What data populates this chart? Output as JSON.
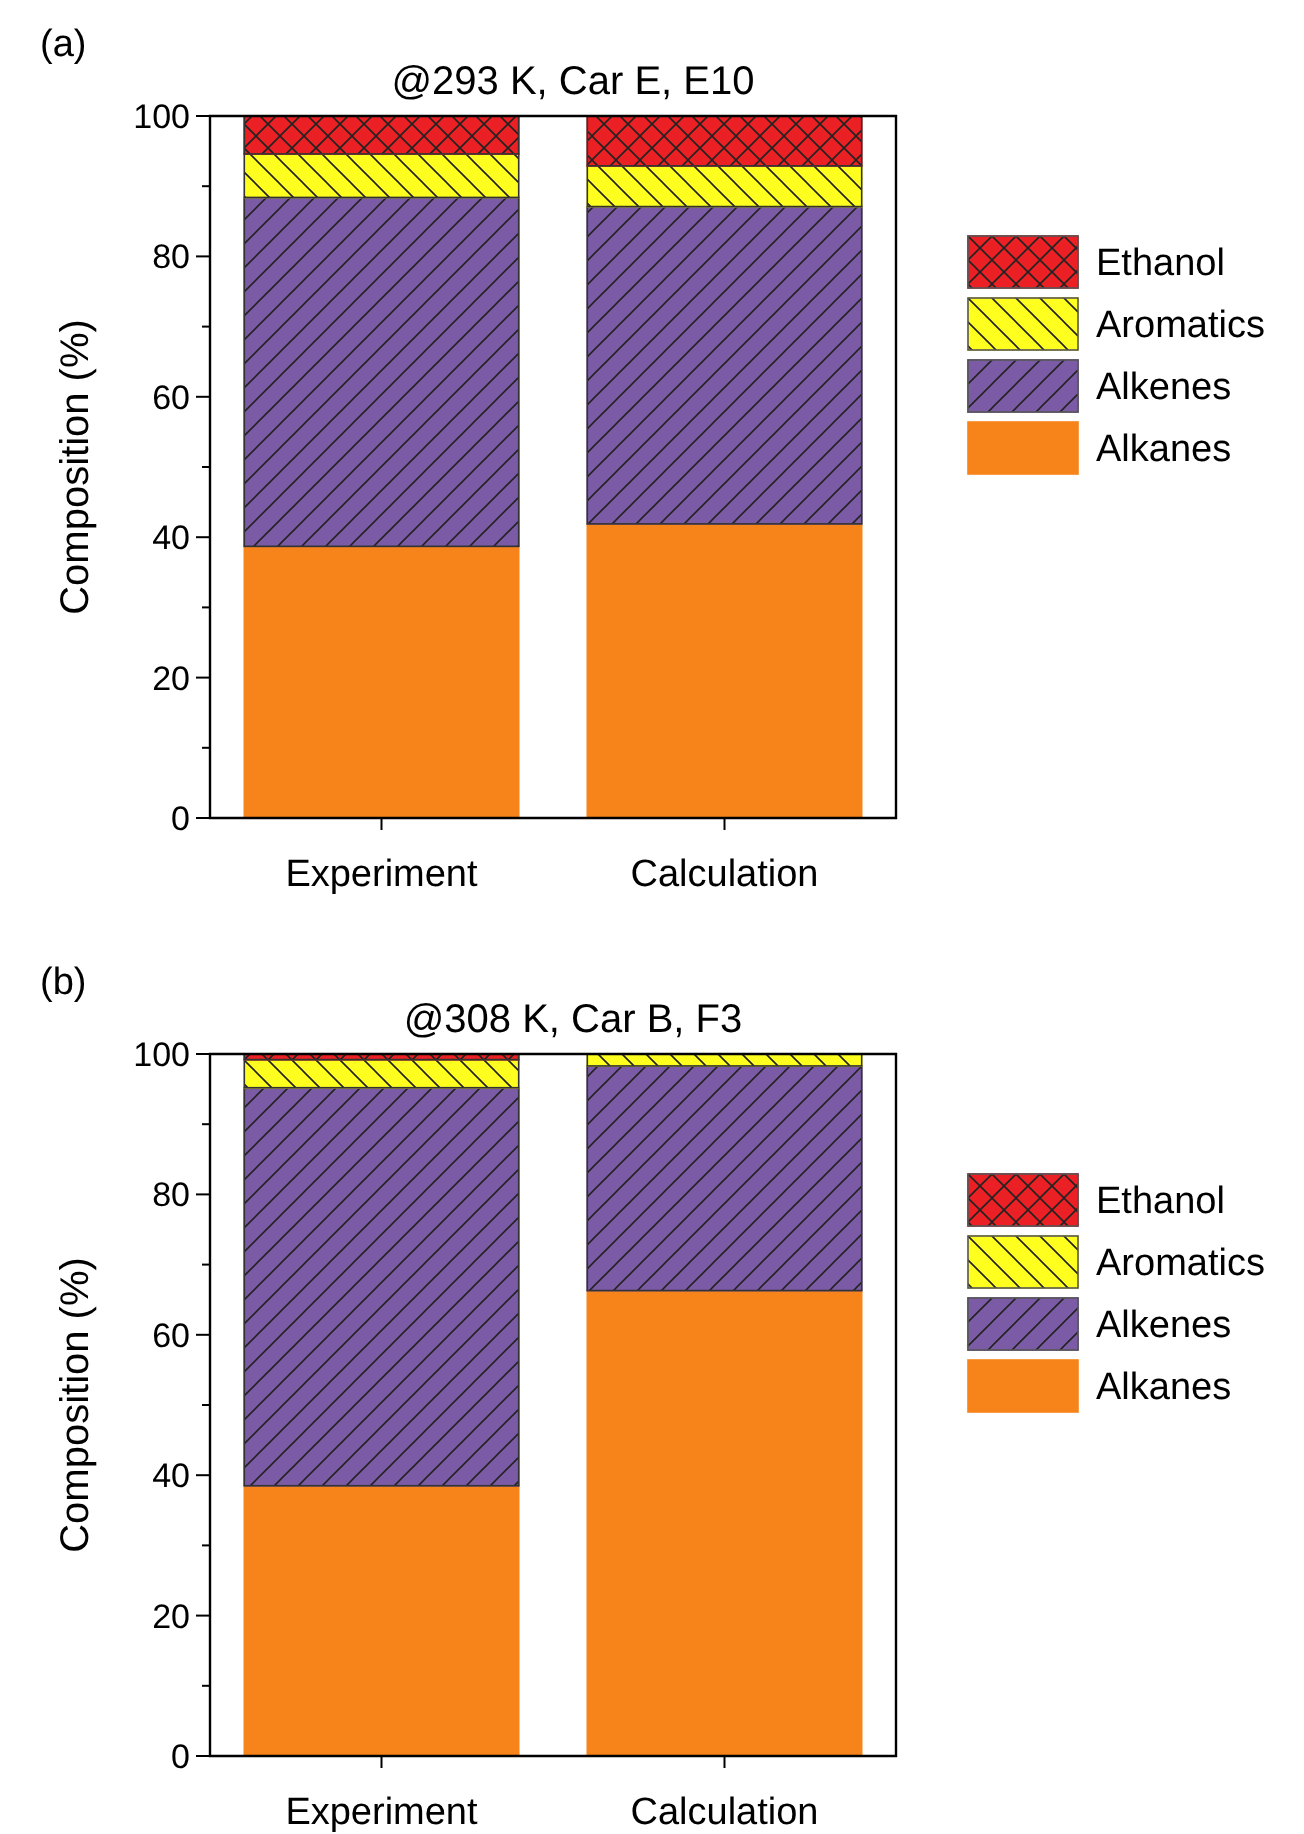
{
  "chart_data": [
    {
      "type": "bar",
      "stacked": true,
      "title": "@293 K, Car E, E10",
      "ylabel": "Composition (%)",
      "annotations": [
        "(a)"
      ],
      "categories": [
        "Experiment",
        "Calculation"
      ],
      "ylim": [
        0,
        100
      ],
      "yticks": [
        0,
        {
          "value": 10,
          "label": null
        },
        20,
        {
          "value": 30,
          "label": null
        },
        40,
        {
          "value": 50,
          "label": null
        },
        60,
        {
          "value": 70,
          "label": null
        },
        80,
        {
          "value": 90,
          "label": null
        },
        100
      ],
      "legend": "right",
      "series": [
        {
          "name": "Alkanes",
          "color": "#f7841a",
          "values": [
            38.7,
            41.9
          ]
        },
        {
          "name": "Alkenes",
          "color": "#7b5ba6",
          "values": [
            49.7,
            45.2
          ]
        },
        {
          "name": "Aromatics",
          "color": "#ffff1f",
          "values": [
            6.2,
            5.8
          ]
        },
        {
          "name": "Ethanol",
          "color": "#ea2024",
          "values": [
            5.4,
            7.1
          ]
        }
      ]
    },
    {
      "type": "bar",
      "stacked": true,
      "title": "@308 K, Car B, F3",
      "ylabel": "Composition (%)",
      "annotations": [
        "(b)"
      ],
      "categories": [
        "Experiment",
        "Calculation"
      ],
      "ylim": [
        0,
        100
      ],
      "yticks": [
        0,
        {
          "value": 10,
          "label": null
        },
        20,
        {
          "value": 30,
          "label": null
        },
        40,
        {
          "value": 50,
          "label": null
        },
        60,
        {
          "value": 70,
          "label": null
        },
        80,
        {
          "value": 90,
          "label": null
        },
        100
      ],
      "legend": "right",
      "series": [
        {
          "name": "Alkanes",
          "color": "#f7841a",
          "values": [
            38.5,
            66.3
          ]
        },
        {
          "name": "Alkenes",
          "color": "#7b5ba6",
          "values": [
            56.7,
            32.0
          ]
        },
        {
          "name": "Aromatics",
          "color": "#ffff1f",
          "values": [
            4.0,
            1.7
          ]
        },
        {
          "name": "Ethanol",
          "color": "#ea2024",
          "values": [
            0.8,
            0
          ]
        }
      ]
    }
  ]
}
